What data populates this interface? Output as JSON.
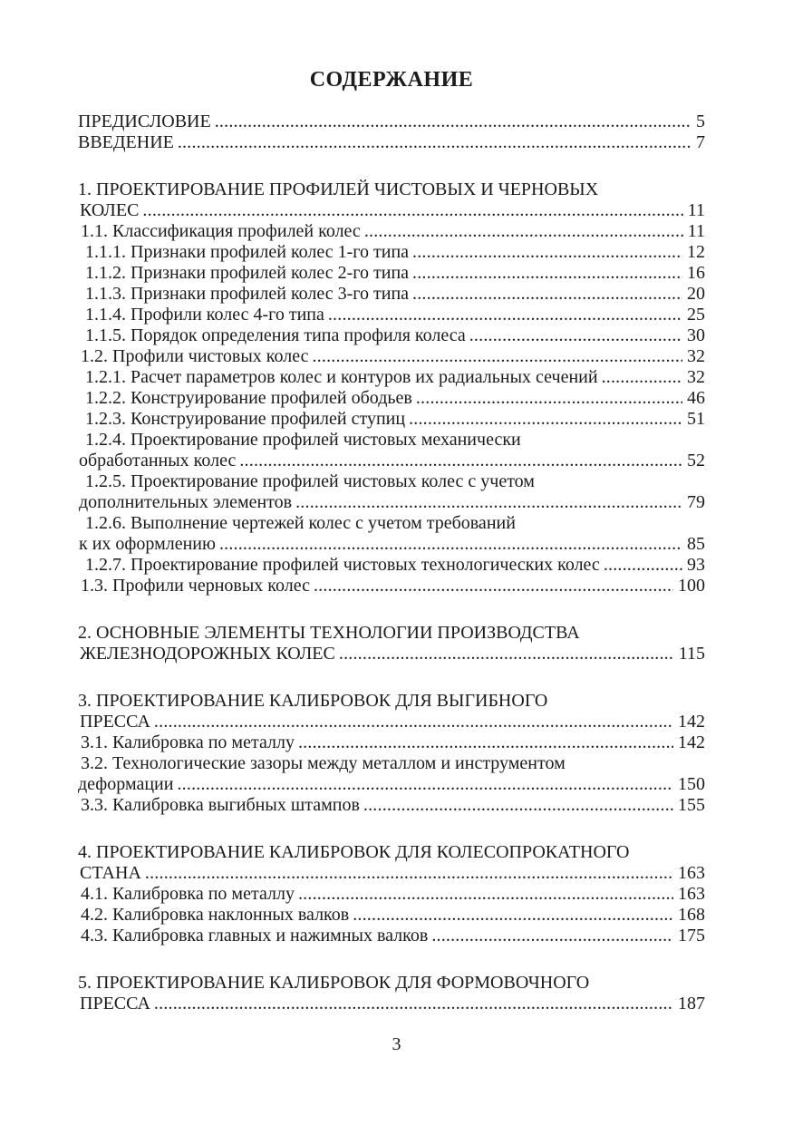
{
  "page": {
    "title": "СОДЕРЖАНИЕ",
    "footer_page_number": "3"
  },
  "colors": {
    "text": "#1b1b1b",
    "background": "#ffffff"
  },
  "toc": {
    "entries": [
      {
        "level": 0,
        "gap_before": false,
        "lines": [
          "ПРЕДИСЛОВИЕ"
        ],
        "page": "5"
      },
      {
        "level": 0,
        "gap_before": false,
        "lines": [
          "ВВЕДЕНИЕ"
        ],
        "page": "7"
      },
      {
        "level": 0,
        "gap_before": true,
        "lines": [
          "1. ПРОЕКТИРОВАНИЕ ПРОФИЛЕЙ ЧИСТОВЫХ И ЧЕРНОВЫХ",
          "КОЛЕС"
        ],
        "page": "11"
      },
      {
        "level": 1,
        "gap_before": false,
        "lines": [
          "1.1. Классификация профилей колес"
        ],
        "page": "11"
      },
      {
        "level": 2,
        "gap_before": false,
        "lines": [
          "1.1.1. Признаки профилей колес 1-го типа"
        ],
        "page": "12"
      },
      {
        "level": 2,
        "gap_before": false,
        "lines": [
          "1.1.2. Признаки профилей колес 2-го типа"
        ],
        "page": "16"
      },
      {
        "level": 2,
        "gap_before": false,
        "lines": [
          "1.1.3. Признаки профилей колес 3-го типа"
        ],
        "page": "20"
      },
      {
        "level": 2,
        "gap_before": false,
        "lines": [
          "1.1.4. Профили колес 4-го типа"
        ],
        "page": "25"
      },
      {
        "level": 2,
        "gap_before": false,
        "lines": [
          "1.1.5. Порядок определения типа профиля колеса"
        ],
        "page": "30"
      },
      {
        "level": 1,
        "gap_before": false,
        "lines": [
          "1.2. Профили чистовых колес"
        ],
        "page": "32"
      },
      {
        "level": 2,
        "gap_before": false,
        "lines": [
          "1.2.1. Расчет параметров колес и контуров их радиальных сечений"
        ],
        "page": "32"
      },
      {
        "level": 2,
        "gap_before": false,
        "lines": [
          "1.2.2. Конструирование профилей ободьев"
        ],
        "page": "46"
      },
      {
        "level": 2,
        "gap_before": false,
        "lines": [
          "1.2.3. Конструирование профилей ступиц"
        ],
        "page": "51"
      },
      {
        "level": 2,
        "gap_before": false,
        "lines": [
          "1.2.4. Проектирование профилей чистовых механически",
          "обработанных колес"
        ],
        "page": "52"
      },
      {
        "level": 2,
        "gap_before": false,
        "lines": [
          "1.2.5. Проектирование профилей чистовых колес с учетом",
          "дополнительных элементов"
        ],
        "page": "79"
      },
      {
        "level": 2,
        "gap_before": false,
        "lines": [
          "1.2.6. Выполнение чертежей колес с учетом требований",
          "к их оформлению"
        ],
        "page": "85"
      },
      {
        "level": 2,
        "gap_before": false,
        "lines": [
          "1.2.7. Проектирование профилей чистовых технологических колес"
        ],
        "page": "93"
      },
      {
        "level": 1,
        "gap_before": false,
        "lines": [
          "1.3. Профили черновых колес"
        ],
        "page": "100"
      },
      {
        "level": 0,
        "gap_before": true,
        "lines": [
          "2. ОСНОВНЫЕ ЭЛЕМЕНТЫ ТЕХНОЛОГИИ ПРОИЗВОДСТВА",
          "ЖЕЛЕЗНОДОРОЖНЫХ КОЛЕС"
        ],
        "page": "115"
      },
      {
        "level": 0,
        "gap_before": true,
        "lines": [
          "3. ПРОЕКТИРОВАНИЕ КАЛИБРОВОК ДЛЯ ВЫГИБНОГО",
          "ПРЕССА"
        ],
        "page": "142"
      },
      {
        "level": 1,
        "gap_before": false,
        "lines": [
          "3.1. Калибровка по металлу"
        ],
        "page": "142"
      },
      {
        "level": 1,
        "gap_before": false,
        "lines": [
          "3.2. Технологические зазоры между металлом и инструментом",
          "деформации"
        ],
        "page": "150"
      },
      {
        "level": 1,
        "gap_before": false,
        "lines": [
          "3.3. Калибровка выгибных штампов"
        ],
        "page": "155"
      },
      {
        "level": 0,
        "gap_before": true,
        "lines": [
          "4. ПРОЕКТИРОВАНИЕ КАЛИБРОВОК ДЛЯ КОЛЕСОПРОКАТНОГО",
          "СТАНА"
        ],
        "page": "163"
      },
      {
        "level": 1,
        "gap_before": false,
        "lines": [
          "4.1. Калибровка по металлу"
        ],
        "page": "163"
      },
      {
        "level": 1,
        "gap_before": false,
        "lines": [
          "4.2. Калибровка наклонных валков"
        ],
        "page": "168"
      },
      {
        "level": 1,
        "gap_before": false,
        "lines": [
          "4.3. Калибровка главных и нажимных валков"
        ],
        "page": "175"
      },
      {
        "level": 0,
        "gap_before": true,
        "lines": [
          "5. ПРОЕКТИРОВАНИЕ КАЛИБРОВОК ДЛЯ ФОРМОВОЧНОГО",
          "ПРЕССА"
        ],
        "page": "187"
      }
    ]
  }
}
